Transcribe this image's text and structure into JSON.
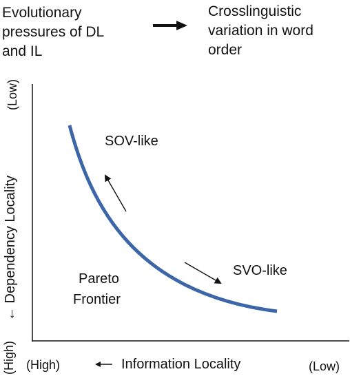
{
  "header": {
    "left_line1": "Evolutionary",
    "left_line2": "pressures of DL",
    "left_line3": "and IL",
    "right_line1": "Crosslinguistic",
    "right_line2": "variation in word",
    "right_line3": "order"
  },
  "diagram": {
    "curve_label_top": "SOV-like",
    "curve_label_bottom": "SVO-like",
    "frontier_line1": "Pareto",
    "frontier_line2": "Frontier",
    "y_axis": {
      "low": "(Low)",
      "title": "← Dependency Locality",
      "high": "(High)"
    },
    "x_axis": {
      "high": "(High)",
      "title": "←  Information Locality",
      "low": "(Low)"
    },
    "colors": {
      "curve": "#3c66a8",
      "axis": "#111111"
    }
  }
}
